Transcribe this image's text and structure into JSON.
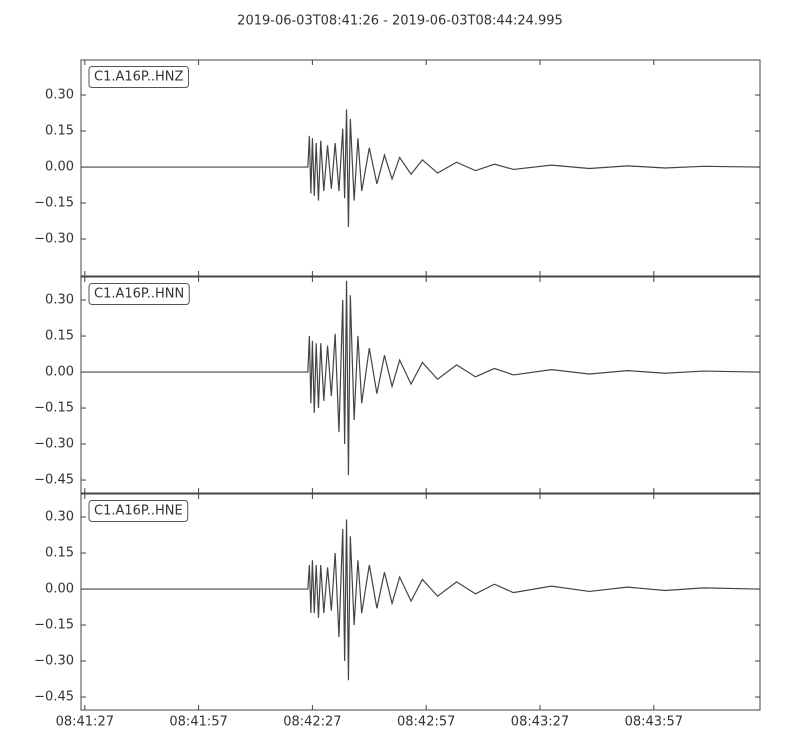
{
  "title": "2019-06-03T08:41:26  -  2019-06-03T08:44:24.995",
  "chart_data": [
    {
      "type": "line",
      "label": "C1.A16P..HNZ",
      "color": "#444444",
      "x": [
        26,
        85.8,
        86.2,
        86.6,
        87.0,
        87.5,
        88,
        88.6,
        89.2,
        90,
        91,
        92,
        93,
        94,
        95,
        95.5,
        96,
        96.5,
        97,
        98,
        99,
        100,
        102,
        104,
        106,
        108,
        110,
        113,
        116,
        120,
        125,
        130,
        135,
        140,
        150,
        160,
        170,
        180,
        190,
        204.9
      ],
      "values": [
        0,
        0,
        0.13,
        -0.11,
        0.12,
        -0.12,
        0.1,
        -0.14,
        0.11,
        -0.1,
        0.09,
        -0.09,
        0.1,
        -0.1,
        0.16,
        -0.13,
        0.24,
        -0.25,
        0.2,
        -0.14,
        0.12,
        -0.1,
        0.08,
        -0.07,
        0.05,
        -0.05,
        0.04,
        -0.03,
        0.03,
        -0.025,
        0.02,
        -0.015,
        0.012,
        -0.01,
        0.008,
        -0.006,
        0.005,
        -0.004,
        0.003,
        0
      ],
      "xlim": [
        26,
        204.995
      ],
      "ylim": [
        -0.454,
        0.446
      ],
      "yticks": [
        {
          "value": -0.3,
          "label": "−0.30"
        },
        {
          "value": -0.15,
          "label": "−0.15"
        },
        {
          "value": 0,
          "label": "0.00"
        },
        {
          "value": 0.15,
          "label": "0.15"
        },
        {
          "value": 0.3,
          "label": "0.30"
        }
      ]
    },
    {
      "type": "line",
      "label": "C1.A16P..HNN",
      "color": "#444444",
      "x": [
        26,
        85.8,
        86.2,
        86.6,
        87.0,
        87.5,
        88,
        88.6,
        89.2,
        90,
        91,
        92,
        93,
        94,
        95,
        95.5,
        96,
        96.5,
        97,
        98,
        99,
        100,
        102,
        104,
        106,
        108,
        110,
        113,
        116,
        120,
        125,
        130,
        135,
        140,
        150,
        160,
        170,
        180,
        190,
        204.9
      ],
      "values": [
        0,
        0,
        0.15,
        -0.13,
        0.13,
        -0.17,
        0.12,
        -0.15,
        0.12,
        -0.12,
        0.11,
        -0.1,
        0.16,
        -0.25,
        0.3,
        -0.3,
        0.38,
        -0.43,
        0.32,
        -0.2,
        0.15,
        -0.13,
        0.1,
        -0.09,
        0.07,
        -0.06,
        0.05,
        -0.05,
        0.04,
        -0.03,
        0.03,
        -0.02,
        0.015,
        -0.012,
        0.01,
        -0.008,
        0.006,
        -0.005,
        0.004,
        0
      ],
      "xlim": [
        26,
        204.995
      ],
      "ylim": [
        -0.504,
        0.396
      ],
      "yticks": [
        {
          "value": -0.45,
          "label": "−0.45"
        },
        {
          "value": -0.3,
          "label": "−0.30"
        },
        {
          "value": -0.15,
          "label": "−0.15"
        },
        {
          "value": 0,
          "label": "0.00"
        },
        {
          "value": 0.15,
          "label": "0.15"
        },
        {
          "value": 0.3,
          "label": "0.30"
        }
      ]
    },
    {
      "type": "line",
      "label": "C1.A16P..HNE",
      "color": "#444444",
      "x": [
        26,
        85.8,
        86.2,
        86.6,
        87.0,
        87.5,
        88,
        88.6,
        89.2,
        90,
        91,
        92,
        93,
        94,
        95,
        95.5,
        96,
        96.5,
        97,
        98,
        99,
        100,
        102,
        104,
        106,
        108,
        110,
        113,
        116,
        120,
        125,
        130,
        135,
        140,
        150,
        160,
        170,
        180,
        190,
        204.9
      ],
      "values": [
        0,
        0,
        0.1,
        -0.1,
        0.12,
        -0.1,
        0.1,
        -0.12,
        0.1,
        -0.1,
        0.09,
        -0.09,
        0.15,
        -0.2,
        0.25,
        -0.3,
        0.29,
        -0.38,
        0.22,
        -0.15,
        0.12,
        -0.1,
        0.1,
        -0.08,
        0.07,
        -0.06,
        0.05,
        -0.05,
        0.04,
        -0.03,
        0.03,
        -0.02,
        0.02,
        -0.015,
        0.012,
        -0.01,
        0.008,
        -0.006,
        0.005,
        0
      ],
      "xlim": [
        26,
        204.995
      ],
      "ylim": [
        -0.504,
        0.396
      ],
      "yticks": [
        {
          "value": -0.45,
          "label": "−0.45"
        },
        {
          "value": -0.3,
          "label": "−0.30"
        },
        {
          "value": -0.15,
          "label": "−0.15"
        },
        {
          "value": 0,
          "label": "0.00"
        },
        {
          "value": 0.15,
          "label": "0.15"
        },
        {
          "value": 0.3,
          "label": "0.30"
        }
      ],
      "xticks": [
        {
          "value": 27,
          "label": "08:41:27"
        },
        {
          "value": 57,
          "label": "08:41:57"
        },
        {
          "value": 87,
          "label": "08:42:27"
        },
        {
          "value": 117,
          "label": "08:42:57"
        },
        {
          "value": 147,
          "label": "08:43:27"
        },
        {
          "value": 177,
          "label": "08:43:57"
        }
      ]
    }
  ]
}
